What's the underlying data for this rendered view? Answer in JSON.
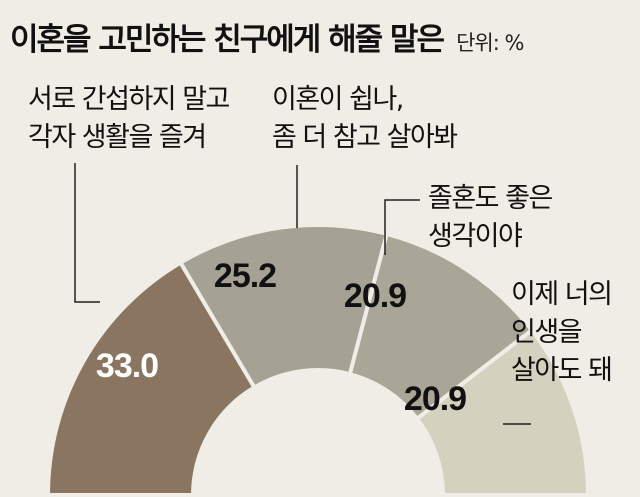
{
  "title": "이혼을 고민하는 친구에게 해줄 말은",
  "unit": "단위: %",
  "colors": {
    "background": "#efede6",
    "slices": [
      "#8a7560",
      "#a5a295",
      "#a9a697",
      "#d5d1bf"
    ],
    "value_text": [
      "#ffffff",
      "#111111",
      "#111111",
      "#111111"
    ],
    "leader": "#222222"
  },
  "chart_data": {
    "type": "pie",
    "title": "이혼을 고민하는 친구에게 해줄 말은",
    "unit": "%",
    "categories": [
      [
        "서로 간섭하지 말고",
        "각자 생활을 즐겨"
      ],
      [
        "이혼이 쉽나,",
        "좀 더 참고 살아봐"
      ],
      [
        "졸혼도 좋은",
        "생각이야"
      ],
      [
        "이제 너의",
        "인생을",
        "살아도 돼"
      ]
    ],
    "values": [
      33.0,
      25.2,
      20.9,
      20.9
    ],
    "value_labels": [
      "33.0",
      "25.2",
      "20.9",
      "20.9"
    ]
  }
}
